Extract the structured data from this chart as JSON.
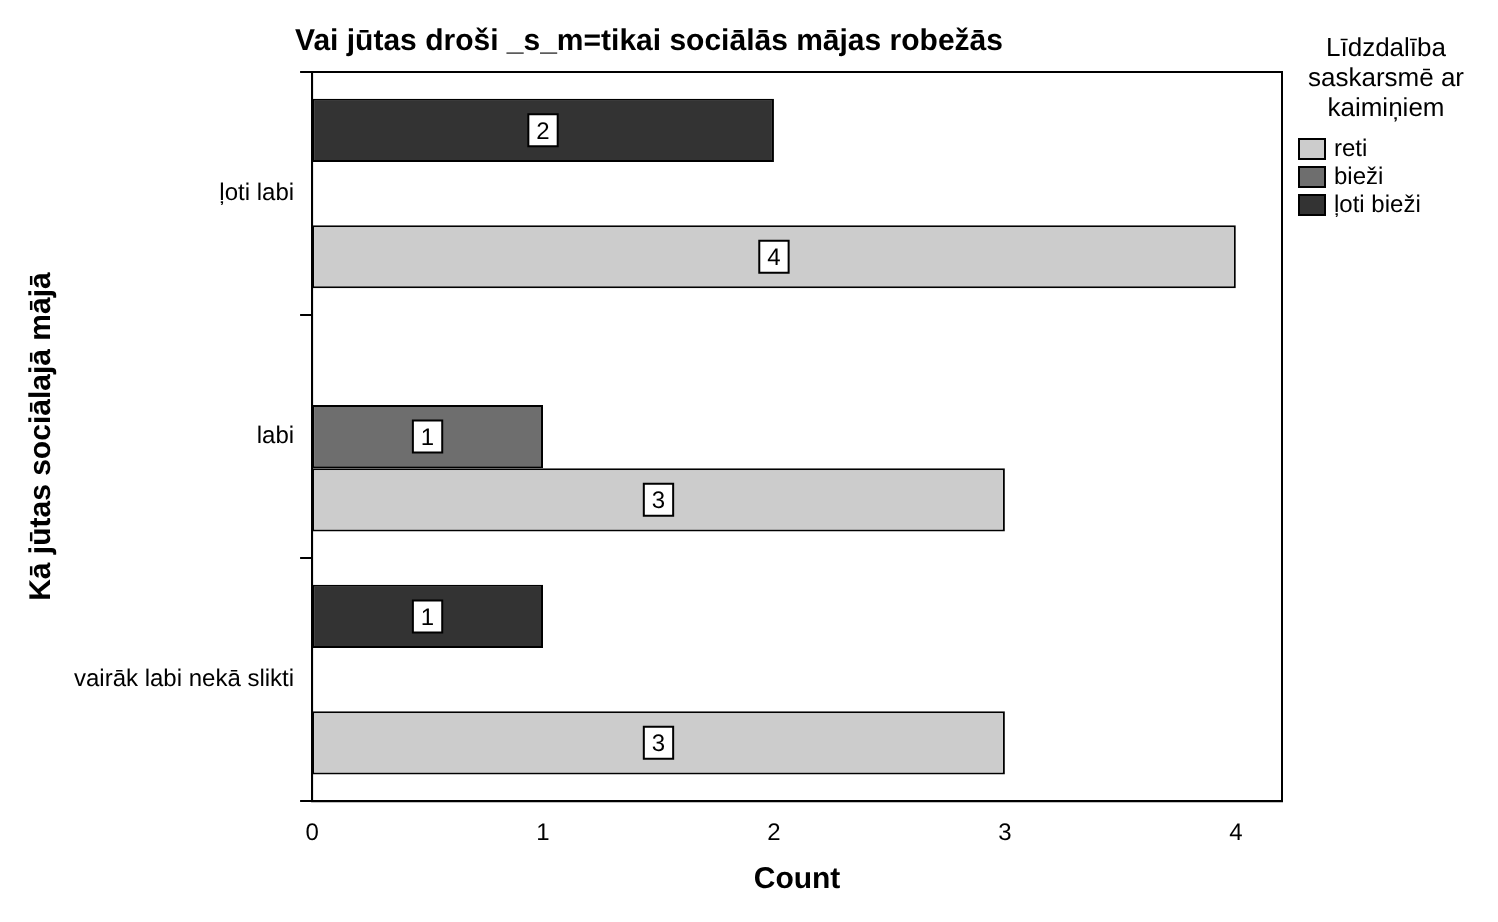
{
  "chart_data": {
    "type": "bar",
    "orientation": "horizontal",
    "title": "Vai jūtas droši _s_m=tikai sociālās mājas robežās",
    "xlabel": "Count",
    "ylabel": "Kā jūtas sociālajā mājā",
    "legend_title": "Līdzdalība saskarsmē ar kaimiņiem",
    "categories": [
      "ļoti labi",
      "labi",
      "vairāk labi nekā slikti"
    ],
    "series": [
      {
        "name": "reti",
        "color": "#cccccc",
        "values": [
          4,
          3,
          3
        ]
      },
      {
        "name": "bieži",
        "color": "#6e6e6e",
        "values": [
          null,
          1,
          null
        ]
      },
      {
        "name": "ļoti bieži",
        "color": "#333333",
        "values": [
          2,
          null,
          1
        ]
      }
    ],
    "xlim": [
      0,
      4.2
    ],
    "xticks": [
      0,
      1,
      2,
      3,
      4
    ],
    "grid": false,
    "legend": "right",
    "data_labels": true
  }
}
